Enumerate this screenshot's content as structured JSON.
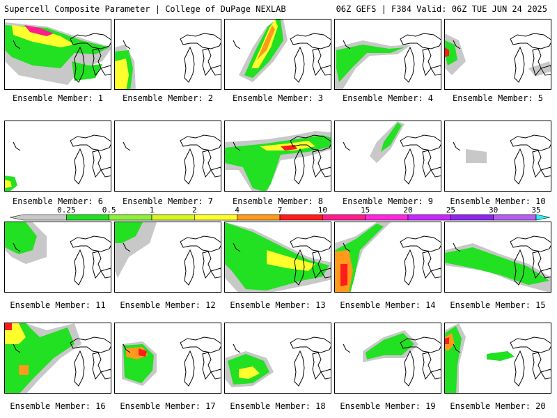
{
  "header": {
    "left": "Supercell Composite Parameter | College of DuPage NEXLAB",
    "right": "06Z GEFS | F384 Valid: 06Z TUE JUN 24 2025"
  },
  "legend": {
    "ticks": [
      "0.25",
      "0.5",
      "1",
      "2",
      "4",
      "7",
      "10",
      "15",
      "20",
      "25",
      "30",
      "35"
    ],
    "colors": [
      "#c8c8c8",
      "#22e022",
      "#8ef03a",
      "#d6f522",
      "#ffff2e",
      "#ff9a1c",
      "#ff1c1c",
      "#ff1c8c",
      "#ff28dc",
      "#c828ff",
      "#8c28ee",
      "#b460f0",
      "#28f0f0"
    ]
  },
  "panels": [
    {
      "label": "Ensemble Member: 1"
    },
    {
      "label": "Ensemble Member: 2"
    },
    {
      "label": "Ensemble Member: 3"
    },
    {
      "label": "Ensemble Member: 4"
    },
    {
      "label": "Ensemble Member: 5"
    },
    {
      "label": "Ensemble Member: 6"
    },
    {
      "label": "Ensemble Member: 7"
    },
    {
      "label": "Ensemble Member: 8"
    },
    {
      "label": "Ensemble Member: 9"
    },
    {
      "label": "Ensemble Member: 10"
    },
    {
      "label": "Ensemble Member: 11"
    },
    {
      "label": "Ensemble Member: 12"
    },
    {
      "label": "Ensemble Member: 13"
    },
    {
      "label": "Ensemble Member: 14"
    },
    {
      "label": "Ensemble Member: 15"
    },
    {
      "label": "Ensemble Member: 16"
    },
    {
      "label": "Ensemble Member: 17"
    },
    {
      "label": "Ensemble Member: 18"
    },
    {
      "label": "Ensemble Member: 19"
    },
    {
      "label": "Ensemble Member: 20"
    }
  ]
}
